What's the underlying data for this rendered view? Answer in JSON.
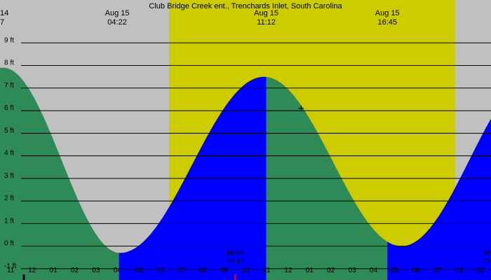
{
  "chart_data": {
    "type": "area",
    "title": "Club Bridge Creek ent., Trenchards Inlet, South Carolina",
    "unit": "ft",
    "y_ticks": [
      -1,
      0,
      1,
      2,
      3,
      4,
      5,
      6,
      7,
      8,
      9
    ],
    "y_tick_labels": [
      "-1 ft",
      "0 ft",
      "1 ft",
      "2 ft",
      "3 ft",
      "4 ft",
      "5 ft",
      "6 ft",
      "7 ft",
      "8 ft",
      "9 ft"
    ],
    "ylim": [
      -1.5,
      10.9
    ],
    "x_hours_range": [
      -1.0,
      21.5
    ],
    "x_tick_labels": [
      "11",
      "12",
      "01",
      "02",
      "03",
      "04",
      "05",
      "06",
      "07",
      "08",
      "09",
      "10",
      "11",
      "12",
      "01",
      "02",
      "03",
      "04",
      "05",
      "06",
      "07",
      "08",
      "09"
    ],
    "daylight": {
      "start_hour": 6.75,
      "end_hour": 19.85
    },
    "top_labels": [
      {
        "date": "14",
        "time": "7",
        "hour": -1.0
      },
      {
        "date": "Aug 15",
        "time": "04:22",
        "hour": 4.37
      },
      {
        "date": "Aug 15",
        "time": "11:12",
        "hour": 11.2
      },
      {
        "date": "Aug 15",
        "time": "16:45",
        "hour": 16.75
      }
    ],
    "extremes": [
      {
        "type": "high",
        "hour": -0.85,
        "height": 7.9
      },
      {
        "type": "low",
        "hour": 4.5,
        "height": -0.3
      },
      {
        "type": "high",
        "hour": 11.1,
        "height": 7.5
      },
      {
        "type": "low",
        "hour": 17.4,
        "height": 0.0
      },
      {
        "type": "high",
        "hour": 23.6,
        "height": 7.6
      }
    ],
    "bands": [
      {
        "start_hour": -1.0,
        "end_hour": 4.45,
        "state": "falling"
      },
      {
        "start_hour": 4.45,
        "end_hour": 11.2,
        "state": "rising"
      },
      {
        "start_hour": 11.2,
        "end_hour": 16.75,
        "state": "falling"
      },
      {
        "start_hour": 16.75,
        "end_hour": 21.5,
        "state": "rising"
      }
    ],
    "moon_labels": [
      {
        "label": "Mrise",
        "time": "09:47",
        "hour": 9.78
      },
      {
        "label": "M",
        "time": "21",
        "hour": 21.3
      }
    ],
    "cursor": {
      "hour": 12.8,
      "height": 6.1
    },
    "colors": {
      "night": "#c0c0c0",
      "day": "#cccc00",
      "falling": "#2e8b57",
      "rising": "#0000ff",
      "moon_tick": "#ff0000",
      "text": "#000000"
    }
  }
}
